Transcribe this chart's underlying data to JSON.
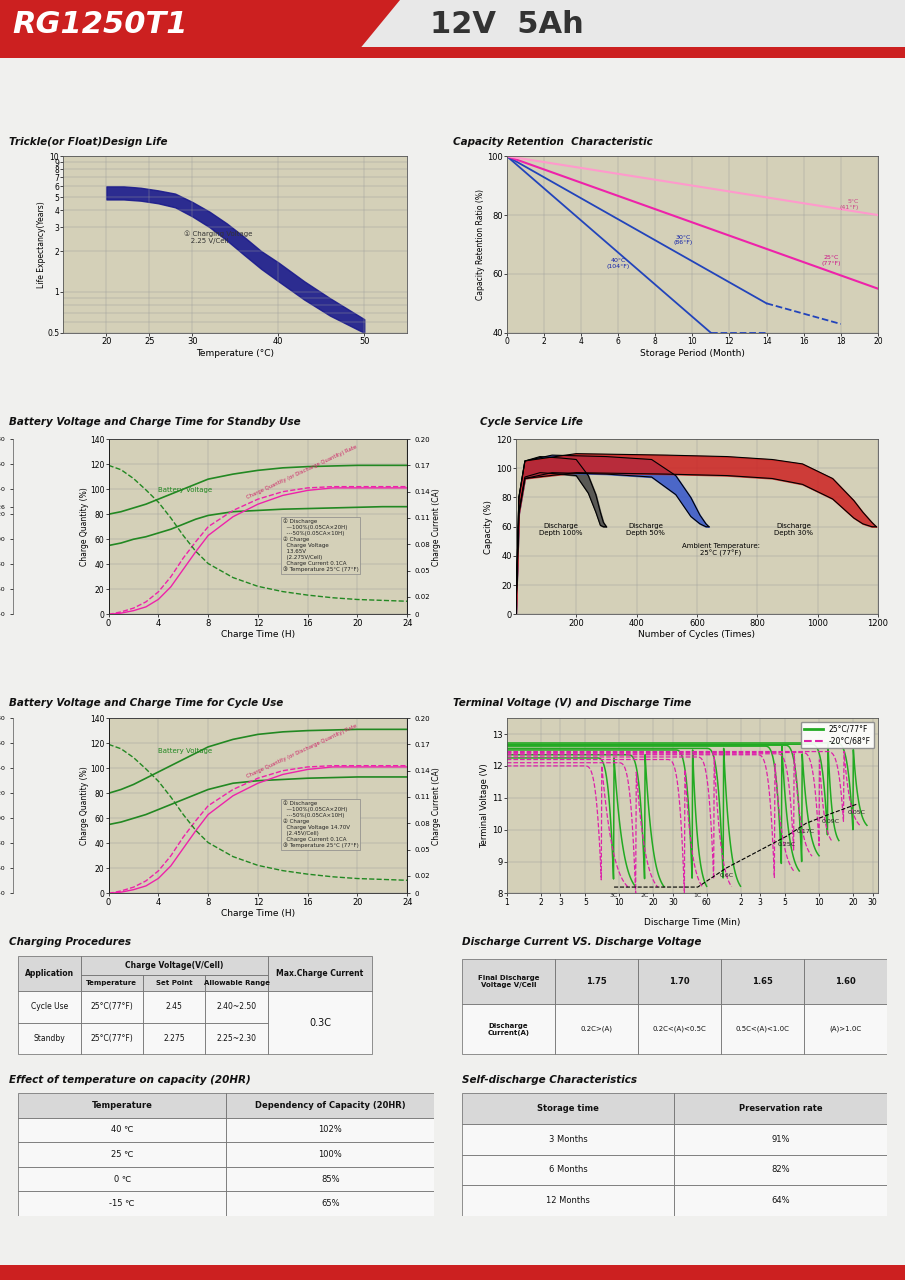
{
  "header_model": "RG1250T1",
  "header_spec": "12V  5Ah",
  "bg_color": "#f0f0ee",
  "chart_bg": "#d4d0b8",
  "trickle_title": "Trickle(or Float)Design Life",
  "trickle_xlabel": "Temperature (°C)",
  "trickle_ylabel": "Life Expectancy(Years)",
  "cap_title": "Capacity Retention  Characteristic",
  "cap_xlabel": "Storage Period (Month)",
  "cap_ylabel": "Capacity Retention Ratio (%)",
  "standby_title": "Battery Voltage and Charge Time for Standby Use",
  "standby_xlabel": "Charge Time (H)",
  "cycle_life_title": "Cycle Service Life",
  "cycle_life_xlabel": "Number of Cycles (Times)",
  "cycle_life_ylabel": "Capacity (%)",
  "cycle_charge_title": "Battery Voltage and Charge Time for Cycle Use",
  "cycle_charge_xlabel": "Charge Time (H)",
  "terminal_title": "Terminal Voltage (V) and Discharge Time",
  "terminal_xlabel": "Discharge Time (Min)",
  "terminal_ylabel": "Terminal Voltage (V)",
  "charging_proc_title": "Charging Procedures",
  "discharge_vs_title": "Discharge Current VS. Discharge Voltage",
  "effect_temp_title": "Effect of temperature on capacity (20HR)",
  "self_discharge_title": "Self-discharge Characteristics"
}
